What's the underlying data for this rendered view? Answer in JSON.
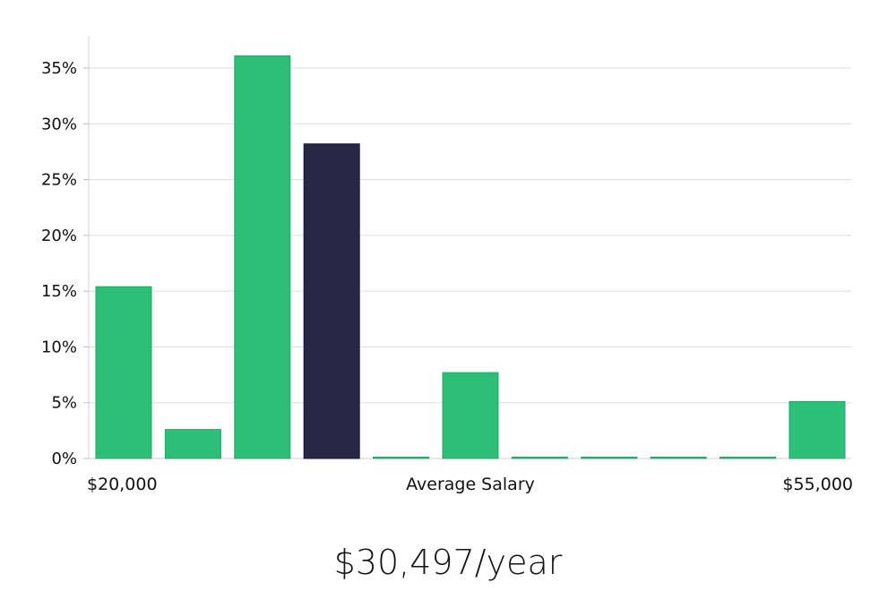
{
  "chart_data": {
    "type": "bar",
    "title": "",
    "xlabel": "Average Salary",
    "ylabel": "",
    "x_range_labels": {
      "min": "$20,000",
      "max": "$55,000"
    },
    "categories": [
      "1",
      "2",
      "3",
      "4",
      "5",
      "6",
      "7",
      "8",
      "9",
      "10",
      "11"
    ],
    "values": [
      15.4,
      2.6,
      36.1,
      28.2,
      0.0,
      7.7,
      0.0,
      0.0,
      0.0,
      0.0,
      5.1
    ],
    "highlight_index": 3,
    "ylim": [
      0,
      38
    ],
    "y_ticks": [
      0,
      5,
      10,
      15,
      20,
      25,
      30,
      35
    ],
    "y_tick_format": "percent",
    "grid": true,
    "colors": {
      "bar": "#2bbf78",
      "bar_stroke": "#22a866",
      "highlight": "#282645",
      "highlight_stroke": "#16143a",
      "grid": "#dddddd",
      "axis": "#cccccc"
    }
  },
  "average_salary_display": "$30,497/year"
}
